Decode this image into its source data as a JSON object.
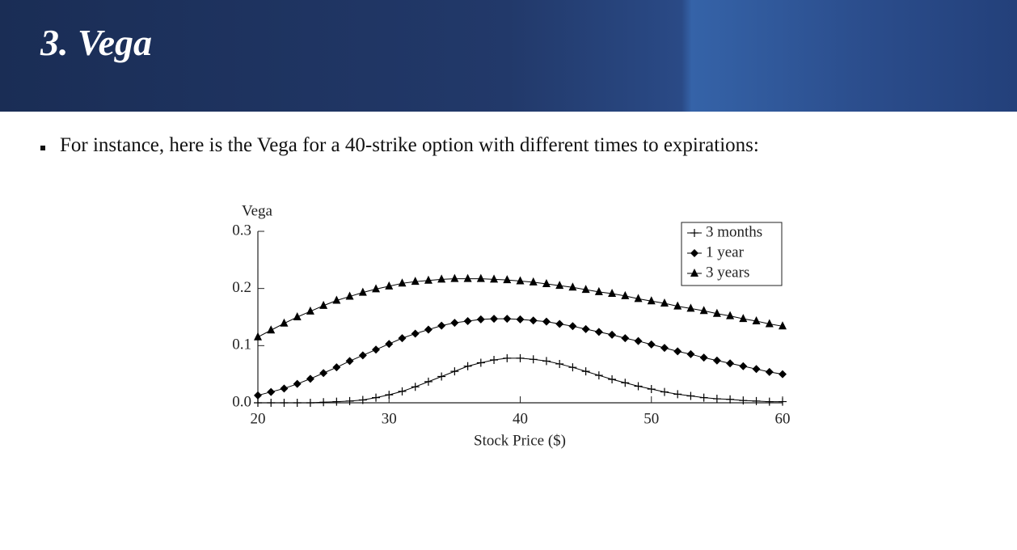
{
  "header": {
    "title": "3. Vega"
  },
  "bullets": [
    "For instance, here is the Vega for a 40-strike option with different times to expirations:"
  ],
  "chart_data": {
    "type": "line",
    "y_label": "Vega",
    "x_label": "Stock Price ($)",
    "x": [
      20,
      21,
      22,
      23,
      24,
      25,
      26,
      27,
      28,
      29,
      30,
      31,
      32,
      33,
      34,
      35,
      36,
      37,
      38,
      39,
      40,
      41,
      42,
      43,
      44,
      45,
      46,
      47,
      48,
      49,
      50,
      51,
      52,
      53,
      54,
      55,
      56,
      57,
      58,
      59,
      60
    ],
    "xlim": [
      20,
      60
    ],
    "xticks": [
      20,
      30,
      40,
      50,
      60
    ],
    "ylim": [
      0,
      0.3
    ],
    "yticks": [
      {
        "value": 0,
        "label": "0.0"
      },
      0.1,
      0.2,
      0.3
    ],
    "legend": "upper-right",
    "series": [
      {
        "name": "3 months",
        "color": "#000000",
        "marker": "plus",
        "values": [
          0.0,
          0.0,
          0.0,
          0.0,
          0.0,
          0.001,
          0.002,
          0.003,
          0.005,
          0.009,
          0.014,
          0.02,
          0.028,
          0.037,
          0.046,
          0.055,
          0.064,
          0.07,
          0.075,
          0.078,
          0.078,
          0.076,
          0.073,
          0.068,
          0.062,
          0.055,
          0.048,
          0.041,
          0.035,
          0.029,
          0.024,
          0.019,
          0.015,
          0.012,
          0.009,
          0.007,
          0.006,
          0.004,
          0.003,
          0.002,
          0.002
        ]
      },
      {
        "name": "1 year",
        "color": "#000000",
        "marker": "diamond",
        "values": [
          0.013,
          0.019,
          0.025,
          0.033,
          0.042,
          0.052,
          0.062,
          0.073,
          0.083,
          0.093,
          0.103,
          0.113,
          0.121,
          0.128,
          0.135,
          0.14,
          0.143,
          0.146,
          0.147,
          0.147,
          0.146,
          0.144,
          0.142,
          0.138,
          0.134,
          0.129,
          0.124,
          0.119,
          0.113,
          0.108,
          0.102,
          0.096,
          0.09,
          0.085,
          0.079,
          0.074,
          0.069,
          0.064,
          0.059,
          0.054,
          0.05
        ]
      },
      {
        "name": "3 years",
        "color": "#000000",
        "marker": "triangle",
        "values": [
          0.115,
          0.127,
          0.139,
          0.15,
          0.16,
          0.17,
          0.179,
          0.186,
          0.193,
          0.199,
          0.204,
          0.209,
          0.212,
          0.214,
          0.216,
          0.217,
          0.217,
          0.217,
          0.216,
          0.215,
          0.213,
          0.211,
          0.208,
          0.205,
          0.202,
          0.198,
          0.194,
          0.191,
          0.187,
          0.182,
          0.178,
          0.174,
          0.169,
          0.165,
          0.161,
          0.156,
          0.152,
          0.147,
          0.143,
          0.138,
          0.134
        ]
      }
    ]
  }
}
